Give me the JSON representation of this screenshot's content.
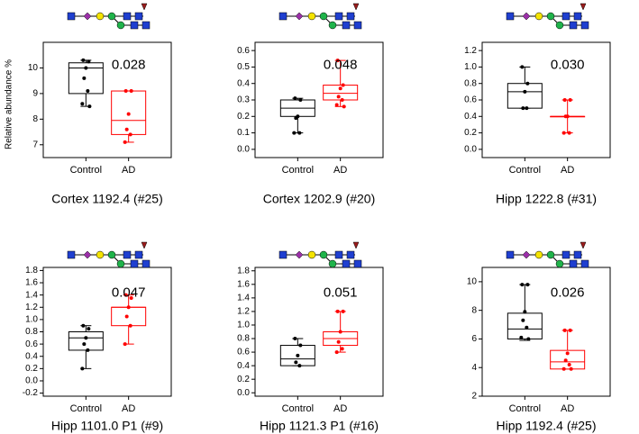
{
  "chart_data": [
    {
      "type": "box",
      "title": "Cortex 1192.4 (#25)",
      "ylabel": "Relative abundance %",
      "annotation": "0.028",
      "categories": [
        "Control",
        "AD"
      ],
      "ylim": [
        6.5,
        11
      ],
      "yticks": [
        7,
        8,
        9,
        10
      ],
      "series": [
        {
          "color": "#000000",
          "whisker_low": 8.5,
          "q1": 9.0,
          "median": 10.0,
          "q3": 10.2,
          "whisker_high": 10.3,
          "points": [
            10.3,
            10.25,
            10.0,
            9.6,
            9.1,
            8.6,
            8.5
          ]
        },
        {
          "color": "#ff0000",
          "whisker_low": 7.1,
          "q1": 7.4,
          "median": 7.95,
          "q3": 9.1,
          "whisker_high": 9.1,
          "points": [
            9.1,
            9.1,
            8.2,
            7.6,
            7.4,
            7.1
          ]
        }
      ]
    },
    {
      "type": "box",
      "title": "Cortex 1202.9 (#20)",
      "annotation": "0.048",
      "categories": [
        "Control",
        "AD"
      ],
      "ylim": [
        -0.05,
        0.65
      ],
      "yticks": [
        {
          "value": 0,
          "label": "0.0"
        },
        0.1,
        0.2,
        0.3,
        0.4,
        0.5,
        0.6
      ],
      "series": [
        {
          "color": "#000000",
          "whisker_low": 0.1,
          "q1": 0.2,
          "median": 0.25,
          "q3": 0.3,
          "whisker_high": 0.31,
          "points": [
            0.31,
            0.3,
            0.2,
            0.19,
            0.1,
            0.1
          ]
        },
        {
          "color": "#ff0000",
          "whisker_low": 0.26,
          "q1": 0.3,
          "median": 0.34,
          "q3": 0.39,
          "whisker_high": 0.54,
          "points": [
            0.54,
            0.39,
            0.37,
            0.32,
            0.3,
            0.27,
            0.26
          ]
        }
      ]
    },
    {
      "type": "box",
      "title": "Hipp 1222.8 (#31)",
      "annotation": "0.030",
      "categories": [
        "Control",
        "AD"
      ],
      "ylim": [
        -0.1,
        1.3
      ],
      "yticks": [
        {
          "value": 0,
          "label": "0.0"
        },
        0.2,
        0.4,
        0.6,
        0.8,
        {
          "value": 1,
          "label": "1.0"
        },
        1.2
      ],
      "series": [
        {
          "color": "#000000",
          "whisker_low": 0.5,
          "q1": 0.5,
          "median": 0.7,
          "q3": 0.8,
          "whisker_high": 1.0,
          "points": [
            1.0,
            0.8,
            0.7,
            0.5,
            0.5
          ]
        },
        {
          "color": "#ff0000",
          "whisker_low": 0.2,
          "q1": 0.4,
          "median": 0.4,
          "q3": 0.4,
          "whisker_high": 0.6,
          "points": [
            0.6,
            0.6,
            0.4,
            0.4,
            0.2,
            0.2
          ]
        }
      ]
    },
    {
      "type": "box",
      "title": "Hipp 1101.0 P1 (#9)",
      "annotation": "0.047",
      "categories": [
        "Control",
        "AD"
      ],
      "ylim": [
        -0.25,
        1.85
      ],
      "yticks": [
        -0.2,
        {
          "value": 0,
          "label": "0.0"
        },
        0.2,
        0.4,
        0.6,
        0.8,
        {
          "value": 1,
          "label": "1.0"
        },
        1.2,
        1.4,
        1.6,
        1.8
      ],
      "series": [
        {
          "color": "#000000",
          "whisker_low": 0.2,
          "q1": 0.5,
          "median": 0.7,
          "q3": 0.8,
          "whisker_high": 0.9,
          "points": [
            0.9,
            0.85,
            0.7,
            0.6,
            0.5,
            0.2
          ]
        },
        {
          "color": "#ff0000",
          "whisker_low": 0.6,
          "q1": 0.9,
          "median": 1.2,
          "q3": 1.2,
          "whisker_high": 1.4,
          "points": [
            1.4,
            1.35,
            1.2,
            1.05,
            0.9,
            0.6
          ]
        }
      ]
    },
    {
      "type": "box",
      "title": "Hipp 1121.3 P1 (#16)",
      "annotation": "0.051",
      "categories": [
        "Control",
        "AD"
      ],
      "ylim": [
        -0.05,
        1.85
      ],
      "yticks": [
        {
          "value": 0,
          "label": "0.0"
        },
        0.2,
        0.4,
        0.6,
        0.8,
        {
          "value": 1,
          "label": "1.0"
        },
        1.2,
        1.4,
        1.6,
        1.8
      ],
      "series": [
        {
          "color": "#000000",
          "whisker_low": 0.4,
          "q1": 0.4,
          "median": 0.5,
          "q3": 0.7,
          "whisker_high": 0.8,
          "points": [
            0.8,
            0.7,
            0.55,
            0.45,
            0.4
          ]
        },
        {
          "color": "#ff0000",
          "whisker_low": 0.6,
          "q1": 0.7,
          "median": 0.8,
          "q3": 0.9,
          "whisker_high": 1.2,
          "points": [
            1.2,
            1.2,
            0.9,
            0.75,
            0.65,
            0.6
          ]
        }
      ]
    },
    {
      "type": "box",
      "title": "Hipp 1192.4 (#25)",
      "annotation": "0.026",
      "categories": [
        "Control",
        "AD"
      ],
      "ylim": [
        2,
        11
      ],
      "yticks": [
        2,
        4,
        6,
        8,
        10
      ],
      "series": [
        {
          "color": "#000000",
          "whisker_low": 5.9,
          "q1": 6.0,
          "median": 6.7,
          "q3": 7.8,
          "whisker_high": 9.8,
          "points": [
            9.8,
            9.8,
            7.9,
            7.3,
            6.8,
            6.1,
            6.0
          ]
        },
        {
          "color": "#ff0000",
          "whisker_low": 3.9,
          "q1": 3.9,
          "median": 4.4,
          "q3": 5.2,
          "whisker_high": 6.6,
          "points": [
            6.6,
            6.6,
            5.0,
            4.5,
            4.2,
            3.9,
            3.9
          ]
        }
      ]
    }
  ]
}
